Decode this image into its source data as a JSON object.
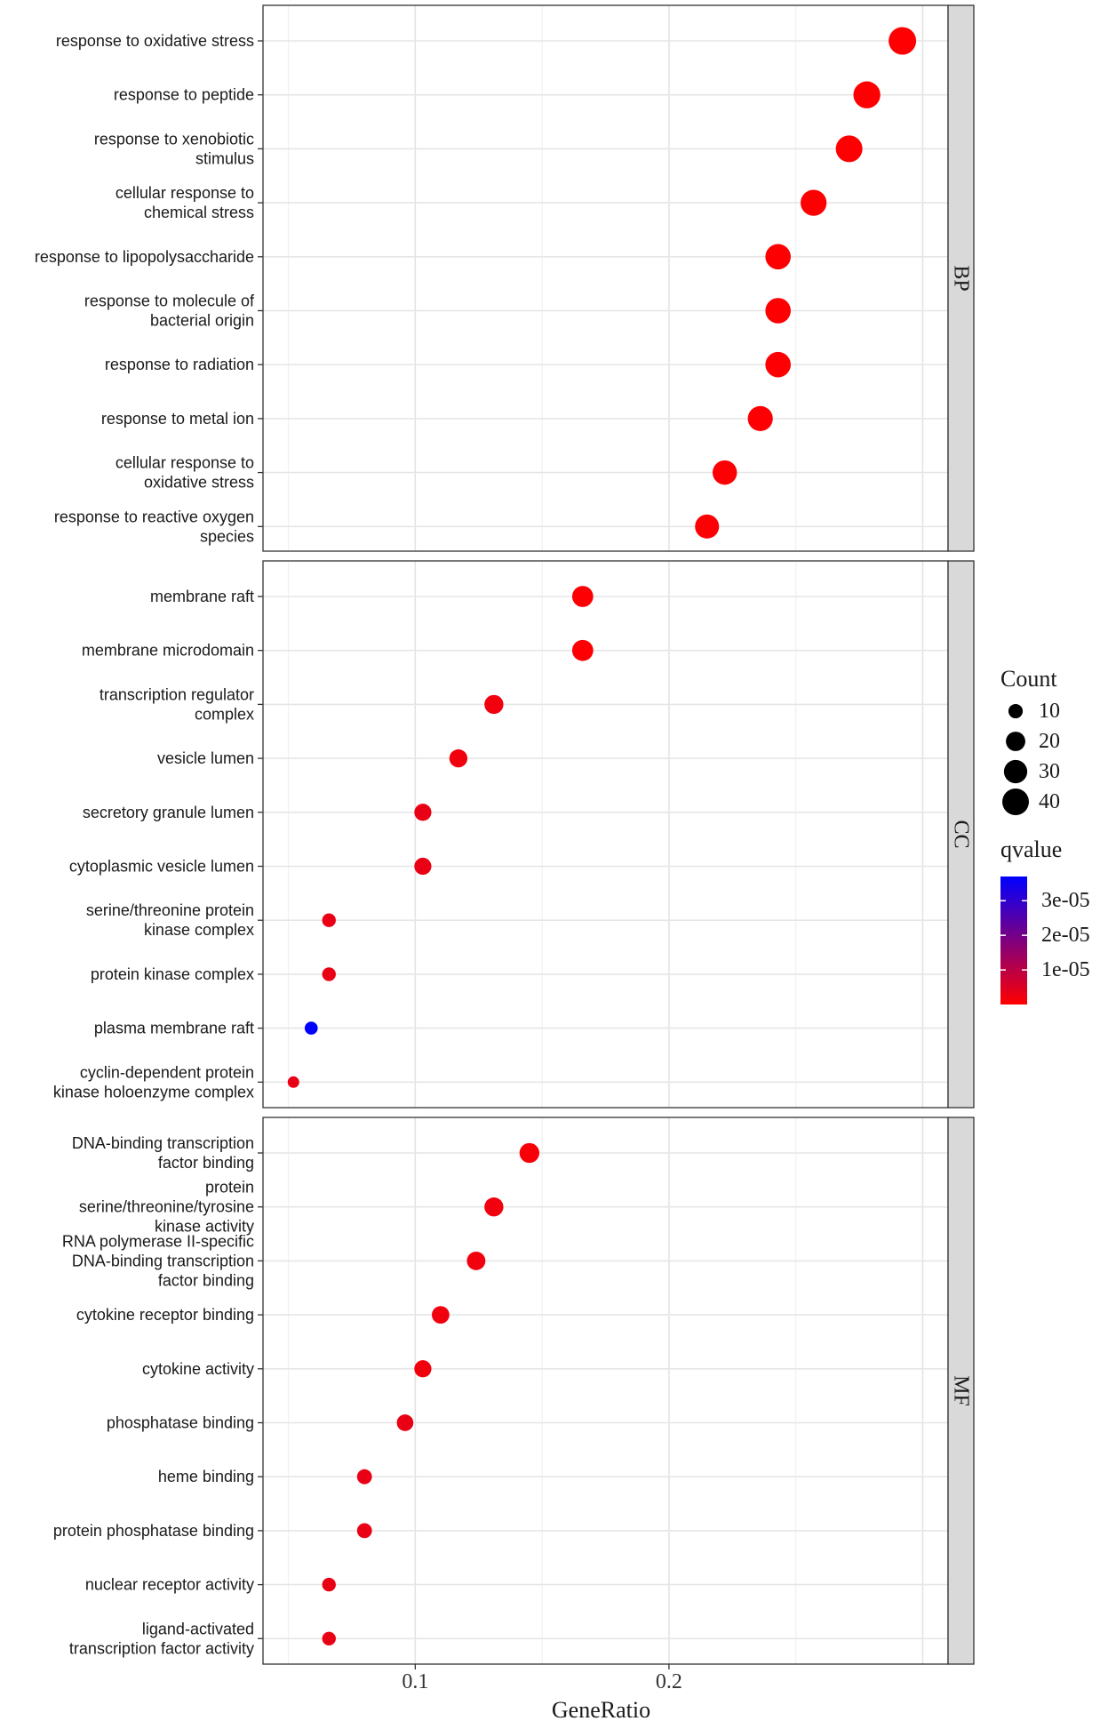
{
  "chart_data": {
    "type": "scatter",
    "subtype": "faceted dot plot (GO enrichment)",
    "xlabel": "GeneRatio",
    "x_ticks": [
      0.1,
      0.2
    ],
    "x_tick_labels": [
      "0.1",
      "0.2"
    ],
    "xlim": [
      0.04,
      0.31
    ],
    "facets": [
      {
        "label": "BP",
        "terms": [
          {
            "lines": [
              "response to oxidative stress"
            ],
            "gene_ratio": 0.292,
            "count": 43,
            "qvalue": 1e-07
          },
          {
            "lines": [
              "response to peptide"
            ],
            "gene_ratio": 0.278,
            "count": 41,
            "qvalue": 2e-07
          },
          {
            "lines": [
              "response to xenobiotic",
              "stimulus"
            ],
            "gene_ratio": 0.271,
            "count": 40,
            "qvalue": 2e-07
          },
          {
            "lines": [
              "cellular response to",
              "chemical stress"
            ],
            "gene_ratio": 0.257,
            "count": 38,
            "qvalue": 3e-07
          },
          {
            "lines": [
              "response to lipopolysaccharide"
            ],
            "gene_ratio": 0.243,
            "count": 36,
            "qvalue": 3e-07
          },
          {
            "lines": [
              "response to molecule of",
              "bacterial origin"
            ],
            "gene_ratio": 0.243,
            "count": 36,
            "qvalue": 3e-07
          },
          {
            "lines": [
              "response to radiation"
            ],
            "gene_ratio": 0.243,
            "count": 36,
            "qvalue": 4e-07
          },
          {
            "lines": [
              "response to metal ion"
            ],
            "gene_ratio": 0.236,
            "count": 35,
            "qvalue": 4e-07
          },
          {
            "lines": [
              "cellular response to",
              "oxidative stress"
            ],
            "gene_ratio": 0.222,
            "count": 33,
            "qvalue": 5e-07
          },
          {
            "lines": [
              "response to reactive oxygen",
              "species"
            ],
            "gene_ratio": 0.215,
            "count": 32,
            "qvalue": 5e-07
          }
        ]
      },
      {
        "label": "CC",
        "terms": [
          {
            "lines": [
              "membrane raft"
            ],
            "gene_ratio": 0.166,
            "count": 24,
            "qvalue": 5e-07
          },
          {
            "lines": [
              "membrane microdomain"
            ],
            "gene_ratio": 0.166,
            "count": 24,
            "qvalue": 5e-07
          },
          {
            "lines": [
              "transcription regulator",
              "complex"
            ],
            "gene_ratio": 0.131,
            "count": 19,
            "qvalue": 2e-06
          },
          {
            "lines": [
              "vesicle lumen"
            ],
            "gene_ratio": 0.117,
            "count": 17,
            "qvalue": 2e-06
          },
          {
            "lines": [
              "secretory granule lumen"
            ],
            "gene_ratio": 0.103,
            "count": 15,
            "qvalue": 3e-06
          },
          {
            "lines": [
              "cytoplasmic vesicle lumen"
            ],
            "gene_ratio": 0.103,
            "count": 15,
            "qvalue": 3e-06
          },
          {
            "lines": [
              "serine/threonine protein",
              "kinase complex"
            ],
            "gene_ratio": 0.066,
            "count": 9,
            "qvalue": 3e-06
          },
          {
            "lines": [
              "protein kinase complex"
            ],
            "gene_ratio": 0.066,
            "count": 9,
            "qvalue": 3e-06
          },
          {
            "lines": [
              "plasma membrane raft"
            ],
            "gene_ratio": 0.059,
            "count": 8,
            "qvalue": 3.7e-05
          },
          {
            "lines": [
              "cyclin-dependent protein",
              "kinase holoenzyme complex"
            ],
            "gene_ratio": 0.052,
            "count": 6,
            "qvalue": 3e-06
          }
        ]
      },
      {
        "label": "MF",
        "terms": [
          {
            "lines": [
              "DNA-binding transcription",
              "factor binding"
            ],
            "gene_ratio": 0.145,
            "count": 21,
            "qvalue": 1e-06
          },
          {
            "lines": [
              "protein",
              "serine/threonine/tyrosine",
              "kinase activity"
            ],
            "gene_ratio": 0.131,
            "count": 19,
            "qvalue": 2e-06
          },
          {
            "lines": [
              "RNA polymerase II-specific",
              "DNA-binding transcription",
              "factor binding"
            ],
            "gene_ratio": 0.124,
            "count": 18,
            "qvalue": 2e-06
          },
          {
            "lines": [
              "cytokine receptor binding"
            ],
            "gene_ratio": 0.11,
            "count": 16,
            "qvalue": 2e-06
          },
          {
            "lines": [
              "cytokine activity"
            ],
            "gene_ratio": 0.103,
            "count": 15,
            "qvalue": 2e-06
          },
          {
            "lines": [
              "phosphatase binding"
            ],
            "gene_ratio": 0.096,
            "count": 14,
            "qvalue": 3e-06
          },
          {
            "lines": [
              "heme binding"
            ],
            "gene_ratio": 0.08,
            "count": 11,
            "qvalue": 3e-06
          },
          {
            "lines": [
              "protein phosphatase binding"
            ],
            "gene_ratio": 0.08,
            "count": 11,
            "qvalue": 3e-06
          },
          {
            "lines": [
              "nuclear receptor activity"
            ],
            "gene_ratio": 0.066,
            "count": 9,
            "qvalue": 3e-06
          },
          {
            "lines": [
              "ligand-activated",
              "transcription factor activity"
            ],
            "gene_ratio": 0.066,
            "count": 9,
            "qvalue": 3e-06
          }
        ]
      }
    ],
    "legend": {
      "size_title": "Count",
      "size_breaks": [
        10,
        20,
        30,
        40
      ],
      "size_labels": [
        "10",
        "20",
        "30",
        "40"
      ],
      "color_title": "qvalue",
      "color_breaks": [
        1e-05,
        2e-05,
        3e-05
      ],
      "color_labels": [
        "1e-05",
        "2e-05",
        "3e-05"
      ],
      "color_range": [
        0,
        3.7e-05
      ],
      "color_low": "#ff0000",
      "color_high": "#0000ff"
    }
  }
}
